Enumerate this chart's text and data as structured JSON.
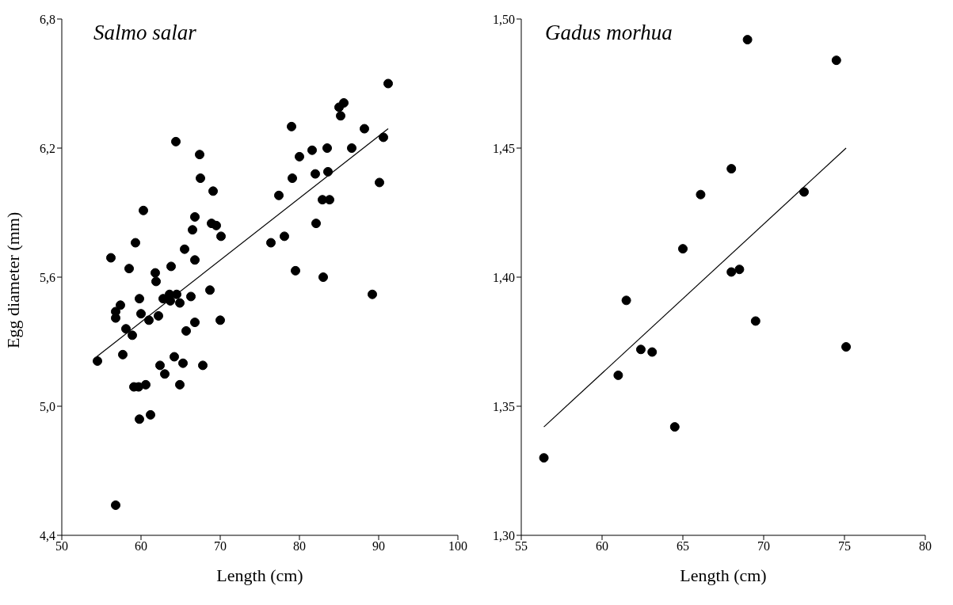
{
  "chart_data": [
    {
      "type": "scatter",
      "title": "Salmo salar",
      "xlabel": "Length (cm)",
      "ylabel": "Egg diameter (mm)",
      "xlim": [
        50,
        100
      ],
      "xticks": [
        50,
        60,
        70,
        80,
        90,
        100
      ],
      "ylim": [
        4.4,
        6.8
      ],
      "yticks": [
        {
          "value": 4.4,
          "label": "4,4"
        },
        {
          "value": 5.0,
          "label": "5,0"
        },
        {
          "value": 5.6,
          "label": "5,6"
        },
        {
          "value": 6.2,
          "label": "6,2"
        },
        {
          "value": 6.8,
          "label": "6,8"
        }
      ],
      "grid": false,
      "marker": "circle",
      "series": [
        {
          "type": "scatter",
          "color": "#000000",
          "x": [
            54.5,
            56.8,
            56.2,
            56.8,
            56.8,
            57.4,
            57.7,
            58.1,
            58.9,
            58.5,
            59.3,
            59.1,
            59.7,
            59.8,
            60.0,
            59.8,
            60.3,
            60.6,
            61.0,
            61.2,
            61.8,
            61.9,
            62.2,
            62.4,
            62.8,
            63.0,
            63.6,
            63.7,
            63.8,
            64.2,
            64.4,
            64.5,
            64.9,
            64.9,
            65.3,
            65.5,
            65.7,
            66.3,
            66.5,
            66.8,
            66.8,
            66.8,
            67.4,
            67.5,
            67.8,
            68.7,
            68.9,
            69.5,
            69.1,
            70.0,
            70.1,
            76.4,
            77.4,
            78.1,
            79.0,
            79.1,
            79.5,
            80.0,
            81.6,
            82.0,
            82.1,
            82.9,
            83.0,
            83.5,
            83.6,
            83.8,
            85.0,
            85.6,
            85.2,
            86.6,
            88.2,
            89.2,
            90.1,
            90.6,
            91.2
          ],
          "values": [
            5.21,
            4.54,
            5.69,
            5.44,
            5.41,
            5.47,
            5.24,
            5.36,
            5.33,
            5.64,
            5.76,
            5.09,
            5.09,
            5.5,
            5.43,
            4.94,
            5.91,
            5.1,
            5.4,
            4.96,
            5.62,
            5.58,
            5.42,
            5.19,
            5.5,
            5.15,
            5.52,
            5.49,
            5.65,
            5.23,
            6.23,
            5.52,
            5.48,
            5.1,
            5.2,
            5.73,
            5.35,
            5.51,
            5.82,
            5.88,
            5.68,
            5.39,
            6.17,
            6.06,
            5.19,
            5.54,
            5.85,
            5.84,
            6.0,
            5.4,
            5.79,
            5.76,
            5.98,
            5.79,
            6.3,
            6.06,
            5.63,
            6.16,
            6.19,
            6.08,
            5.85,
            5.96,
            5.6,
            6.2,
            6.09,
            5.96,
            6.39,
            6.41,
            6.35,
            6.2,
            6.29,
            5.52,
            6.04,
            6.25,
            6.5
          ]
        },
        {
          "type": "line",
          "color": "#000000",
          "marker": "none",
          "line_style": "solid",
          "x": [
            54.4,
            91.2
          ],
          "values": [
            5.23,
            6.29
          ]
        }
      ]
    },
    {
      "type": "scatter",
      "title": "Gadus morhua",
      "xlabel": "Length (cm)",
      "xlim": [
        55,
        80
      ],
      "xticks": [
        55,
        60,
        65,
        70,
        75,
        80
      ],
      "ylim": [
        1.3,
        1.5
      ],
      "yticks": [
        {
          "value": 1.3,
          "label": "1,30"
        },
        {
          "value": 1.35,
          "label": "1,35"
        },
        {
          "value": 1.4,
          "label": "1,40"
        },
        {
          "value": 1.45,
          "label": "1,45"
        },
        {
          "value": 1.5,
          "label": "1,50"
        }
      ],
      "grid": false,
      "marker": "circle",
      "series": [
        {
          "type": "scatter",
          "color": "#000000",
          "x": [
            56.4,
            61.0,
            61.5,
            62.4,
            63.1,
            64.5,
            65.0,
            66.1,
            68.0,
            68.5,
            68.0,
            69.0,
            69.5,
            72.5,
            74.5,
            75.1
          ],
          "values": [
            1.33,
            1.362,
            1.391,
            1.372,
            1.371,
            1.342,
            1.411,
            1.432,
            1.402,
            1.403,
            1.442,
            1.492,
            1.383,
            1.433,
            1.484,
            1.373
          ]
        },
        {
          "type": "line",
          "color": "#000000",
          "marker": "none",
          "line_style": "solid",
          "x": [
            56.4,
            75.1
          ],
          "values": [
            1.342,
            1.45
          ]
        }
      ]
    }
  ]
}
